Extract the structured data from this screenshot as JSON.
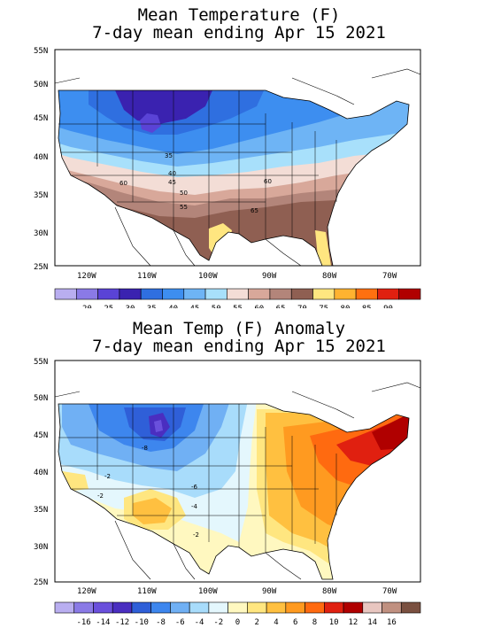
{
  "panels": [
    {
      "title_line1": "Mean Temperature (F)",
      "title_line2": "7-day mean ending Apr 15 2021",
      "lat_labels": [
        "55N",
        "50N",
        "45N",
        "40N",
        "35N",
        "30N",
        "25N"
      ],
      "lon_labels": [
        "120W",
        "110W",
        "100W",
        "90W",
        "80W",
        "70W"
      ],
      "colorbar_labels": [
        "20",
        "25",
        "30",
        "35",
        "40",
        "45",
        "50",
        "55",
        "60",
        "65",
        "70",
        "75",
        "80",
        "85",
        "90"
      ],
      "colorbar_colors": [
        "#b9aef0",
        "#8a7ae6",
        "#5a43d6",
        "#3a22b0",
        "#2f6fe0",
        "#3d8ef0",
        "#6eb4f5",
        "#a8e0fb",
        "#f3ddd6",
        "#d8a89a",
        "#b3857a",
        "#8f5f52",
        "#ffe680",
        "#ffb330",
        "#ff7010",
        "#e02010",
        "#b00000"
      ],
      "contour_labels": [
        "35",
        "40",
        "45",
        "50",
        "55",
        "60",
        "60",
        "65"
      ]
    },
    {
      "title_line1": "Mean Temp (F) Anomaly",
      "title_line2": "7-day mean ending Apr 15 2021",
      "lat_labels": [
        "55N",
        "50N",
        "45N",
        "40N",
        "35N",
        "30N",
        "25N"
      ],
      "lon_labels": [
        "120W",
        "110W",
        "100W",
        "90W",
        "80W",
        "70W"
      ],
      "colorbar_labels": [
        "-16",
        "-14",
        "-12",
        "-10",
        "-8",
        "-6",
        "-4",
        "-2",
        "0",
        "2",
        "4",
        "6",
        "8",
        "10",
        "12",
        "14",
        "16"
      ],
      "colorbar_colors": [
        "#b9aef0",
        "#8a7ae6",
        "#6a50dc",
        "#4a2ec0",
        "#2f5fd8",
        "#3d86ee",
        "#70b0f4",
        "#a8dcfb",
        "#e4f7fd",
        "#fff8c0",
        "#ffe680",
        "#ffc040",
        "#ff9a20",
        "#ff6a10",
        "#e02010",
        "#b00000",
        "#e8c6c0",
        "#c09080",
        "#7a5040"
      ],
      "contour_labels": [
        "-8",
        "-6",
        "-4",
        "-2",
        "-2",
        "-2"
      ]
    }
  ]
}
